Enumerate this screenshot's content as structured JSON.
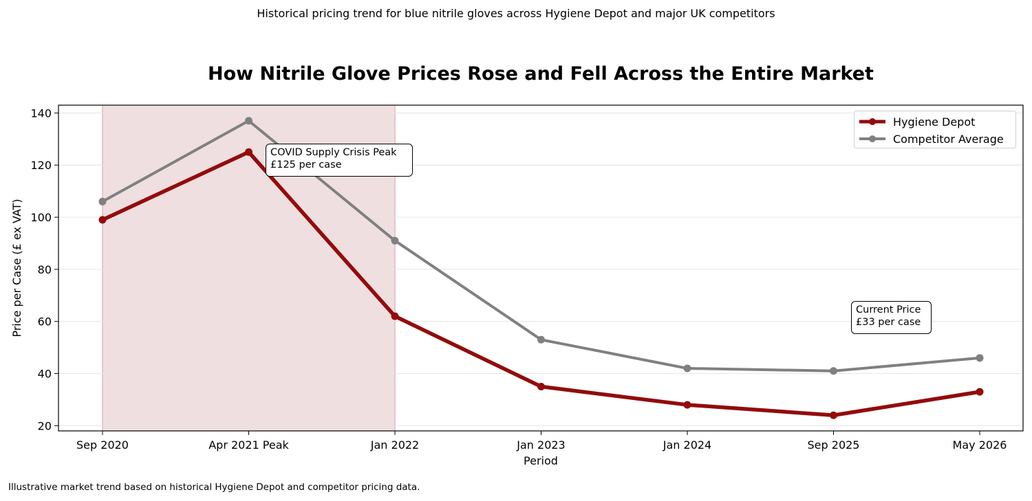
{
  "header": {
    "subtitle": "Historical pricing trend for blue nitrile gloves across Hygiene Depot and major UK competitors",
    "title": "How Nitrile Glove Prices Rose and Fell Across the Entire Market"
  },
  "footer": {
    "note": "Illustrative market trend based on historical Hygiene Depot and competitor pricing data."
  },
  "chart_data": {
    "type": "line",
    "title": "How Nitrile Glove Prices Rose and Fell Across the Entire Market",
    "xlabel": "Period",
    "ylabel": "Price per Case (£ ex VAT)",
    "categories": [
      "Sep 2020",
      "Apr 2021 Peak",
      "Jan 2022",
      "Jan 2023",
      "Jan 2024",
      "Sep 2025",
      "May 2026"
    ],
    "ylim": [
      18,
      143
    ],
    "yticks": [
      20,
      40,
      60,
      80,
      100,
      120,
      140
    ],
    "grid": "horizontal",
    "legend_position": "top-right",
    "shaded_region": {
      "from": "Sep 2020",
      "to": "Jan 2022",
      "color": "#f0dfe0"
    },
    "series": [
      {
        "name": "Hygiene Depot",
        "values": [
          99,
          125,
          62,
          35,
          28,
          24,
          33
        ],
        "color": "#930b0b"
      },
      {
        "name": "Competitor Average",
        "values": [
          106,
          137,
          91,
          53,
          42,
          41,
          46
        ],
        "color": "#808080"
      }
    ],
    "annotations": [
      {
        "lines": [
          "COVID Supply Crisis Peak",
          "£125 per case"
        ]
      },
      {
        "lines": [
          "Current Price",
          "£33 per case"
        ]
      }
    ]
  }
}
